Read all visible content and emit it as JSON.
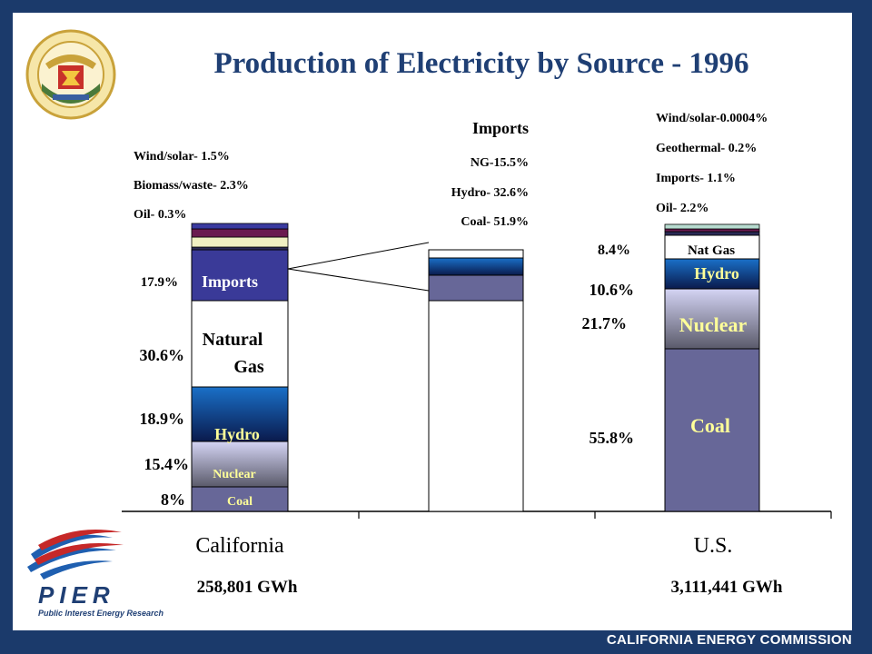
{
  "title": "Production of Electricity by Source - 1996",
  "footer": "CALIFORNIA ENERGY COMMISSION",
  "logos": {
    "seal": "california-energy-commission-seal",
    "pier": "PIER",
    "pier_subtitle": "Public Interest Energy Research"
  },
  "colors": {
    "background": "#1b3a6b",
    "coal": "#676798",
    "nuclear_top": "#d0d0f0",
    "nuclear_bottom": "#5c5c6e",
    "hydro_top": "#1a6ec4",
    "hydro_bottom": "#0a1e52",
    "natural_gas": "#ffffff",
    "imports": "#3a3a98",
    "oil": "#2a2a55",
    "biomass": "#efefc2",
    "wind_solar": "#6a1a50",
    "geothermal": "#b8dcd0"
  },
  "chart_data": {
    "type": "bar",
    "stacked": true,
    "title": "Production of Electricity by Source - 1996",
    "categories": [
      "California",
      "",
      "U.S."
    ],
    "totals": [
      "258,801 GWh",
      "",
      "3,111,441 GWh"
    ],
    "ylim": [
      0,
      100
    ],
    "series": [
      {
        "name": "Coal",
        "values": [
          8,
          51.9,
          55.8
        ]
      },
      {
        "name": "Nuclear",
        "values": [
          15.4,
          0,
          21.7
        ]
      },
      {
        "name": "Hydro",
        "values": [
          18.9,
          32.6,
          10.6
        ]
      },
      {
        "name": "Natural Gas",
        "values": [
          30.6,
          15.5,
          8.4
        ]
      },
      {
        "name": "Imports",
        "values": [
          17.9,
          0,
          1.1
        ]
      },
      {
        "name": "Oil",
        "values": [
          0.3,
          0,
          2.2
        ]
      },
      {
        "name": "Biomass/waste",
        "values": [
          2.3,
          0,
          0
        ]
      },
      {
        "name": "Geothermal",
        "values": [
          0,
          0,
          0.2
        ]
      },
      {
        "name": "Wind/solar",
        "values": [
          1.5,
          0,
          0.0004
        ]
      }
    ],
    "california": {
      "bar_labels": {
        "coal": "Coal",
        "nuclear": "Nuclear",
        "hydro": "Hydro",
        "natural_gas": [
          "Natural",
          "Gas"
        ],
        "imports": "Imports"
      },
      "left_labels": {
        "coal": "8%",
        "nuclear": "15.4%",
        "hydro": "18.9%",
        "natural_gas": "30.6%",
        "imports": "17.9%"
      },
      "top_labels": [
        "Wind/solar- 1.5%",
        "Biomass/waste- 2.3%",
        "Oil- 0.3%"
      ]
    },
    "imports_breakdown": {
      "heading": "Imports",
      "labels": [
        "NG-15.5%",
        "Hydro- 32.6%",
        "Coal- 51.9%"
      ]
    },
    "us": {
      "bar_labels": {
        "coal": "Coal",
        "nuclear": "Nuclear",
        "hydro": "Hydro",
        "natural_gas": "Nat Gas"
      },
      "left_labels": {
        "coal": "55.8%",
        "nuclear": "21.7%",
        "hydro": "10.6%",
        "natural_gas": "8.4%"
      },
      "top_labels": [
        "Wind/solar-0.0004%",
        "Geothermal- 0.2%",
        "Imports- 1.1%",
        "Oil- 2.2%"
      ]
    }
  }
}
